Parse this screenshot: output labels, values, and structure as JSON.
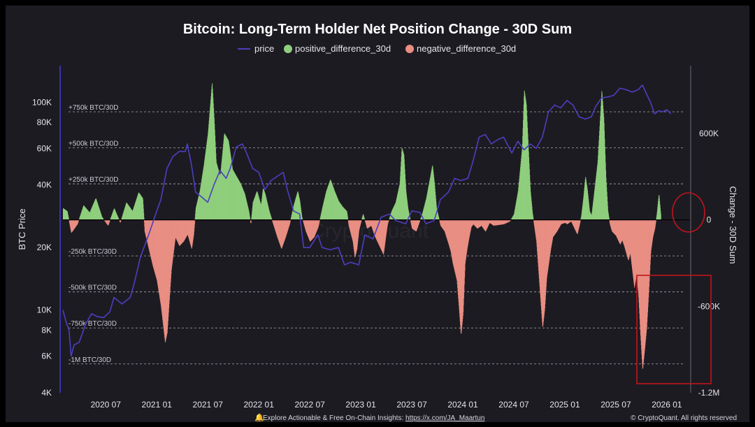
{
  "chart_data": {
    "type": "bar+line",
    "title": "Bitcoin: Long-Term Holder Net Position Change - 30D Sum",
    "legend": [
      {
        "name": "price",
        "color": "#4b3fbf",
        "marker": "line"
      },
      {
        "name": "positive_difference_30d",
        "color": "#8fce7c",
        "marker": "dot"
      },
      {
        "name": "negative_difference_30d",
        "color": "#e98e83",
        "marker": "dot"
      }
    ],
    "ylabel_left": "BTC Price",
    "ylabel_right": "Change - 30D Sum",
    "x_ticks": [
      "2020 07",
      "2021 01",
      "2021 07",
      "2022 01",
      "2022 07",
      "2023 01",
      "2023 07",
      "2024 01",
      "2024 07",
      "2025 01",
      "2025 07",
      "2026 01"
    ],
    "x_tick_times": [
      2020.5,
      2021.0,
      2021.5,
      2022.0,
      2022.5,
      2023.0,
      2023.5,
      2024.0,
      2024.5,
      2025.0,
      2025.5,
      2026.0
    ],
    "x_range": [
      2020.08,
      2026.22
    ],
    "left_axis": {
      "scale": "log",
      "range": [
        4000,
        150000
      ],
      "ticks": [
        {
          "v": 4000,
          "label": "4K"
        },
        {
          "v": 6000,
          "label": "6K"
        },
        {
          "v": 8000,
          "label": "8K"
        },
        {
          "v": 10000,
          "label": "10K"
        },
        {
          "v": 20000,
          "label": "20K"
        },
        {
          "v": 40000,
          "label": "40K"
        },
        {
          "v": 60000,
          "label": "60K"
        },
        {
          "v": 80000,
          "label": "80K"
        },
        {
          "v": 100000,
          "label": "100K"
        }
      ]
    },
    "right_axis": {
      "scale": "linear",
      "range": [
        -1200000,
        1070000
      ],
      "ticks": [
        {
          "v": 600000,
          "label": "600K"
        },
        {
          "v": 0,
          "label": "0"
        },
        {
          "v": -600000,
          "label": "-600K"
        },
        {
          "v": -1200000,
          "label": "-1.2M"
        }
      ]
    },
    "reference_lines": [
      {
        "v": 750000,
        "label": "+750k BTC/30D"
      },
      {
        "v": 500000,
        "label": "+500k BTC/30D"
      },
      {
        "v": 250000,
        "label": "+250k BTC/30D"
      },
      {
        "v": -250000,
        "label": "-250k BTC/30D"
      },
      {
        "v": -500000,
        "label": "-500k BTC/30D"
      },
      {
        "v": -750000,
        "label": "-750k BTC/30D"
      },
      {
        "v": -1000000,
        "label": "-1M BTC/30D"
      }
    ],
    "net_change_keypoints": [
      [
        2020.08,
        80000
      ],
      [
        2020.12,
        60000
      ],
      [
        2020.16,
        -90000
      ],
      [
        2020.22,
        -30000
      ],
      [
        2020.28,
        100000
      ],
      [
        2020.34,
        50000
      ],
      [
        2020.4,
        150000
      ],
      [
        2020.46,
        20000
      ],
      [
        2020.52,
        -40000
      ],
      [
        2020.58,
        80000
      ],
      [
        2020.64,
        -20000
      ],
      [
        2020.7,
        120000
      ],
      [
        2020.76,
        60000
      ],
      [
        2020.82,
        190000
      ],
      [
        2020.86,
        150000
      ],
      [
        2020.88,
        -80000
      ],
      [
        2020.92,
        -200000
      ],
      [
        2020.96,
        -320000
      ],
      [
        2021.0,
        -420000
      ],
      [
        2021.04,
        -600000
      ],
      [
        2021.08,
        -850000
      ],
      [
        2021.1,
        -780000
      ],
      [
        2021.14,
        -350000
      ],
      [
        2021.18,
        -120000
      ],
      [
        2021.22,
        -180000
      ],
      [
        2021.26,
        -150000
      ],
      [
        2021.3,
        -100000
      ],
      [
        2021.34,
        -200000
      ],
      [
        2021.36,
        -100000
      ],
      [
        2021.38,
        80000
      ],
      [
        2021.42,
        200000
      ],
      [
        2021.46,
        380000
      ],
      [
        2021.5,
        600000
      ],
      [
        2021.54,
        950000
      ],
      [
        2021.56,
        700000
      ],
      [
        2021.58,
        400000
      ],
      [
        2021.62,
        300000
      ],
      [
        2021.66,
        600000
      ],
      [
        2021.7,
        550000
      ],
      [
        2021.74,
        350000
      ],
      [
        2021.78,
        300000
      ],
      [
        2021.82,
        250000
      ],
      [
        2021.86,
        180000
      ],
      [
        2021.9,
        60000
      ],
      [
        2021.92,
        -30000
      ],
      [
        2021.94,
        120000
      ],
      [
        2021.98,
        200000
      ],
      [
        2022.02,
        100000
      ],
      [
        2022.04,
        220000
      ],
      [
        2022.06,
        180000
      ],
      [
        2022.1,
        60000
      ],
      [
        2022.14,
        -30000
      ],
      [
        2022.18,
        -120000
      ],
      [
        2022.22,
        -200000
      ],
      [
        2022.26,
        -120000
      ],
      [
        2022.3,
        -30000
      ],
      [
        2022.34,
        100000
      ],
      [
        2022.38,
        200000
      ],
      [
        2022.4,
        130000
      ],
      [
        2022.42,
        20000
      ],
      [
        2022.46,
        -80000
      ],
      [
        2022.5,
        -150000
      ],
      [
        2022.54,
        -120000
      ],
      [
        2022.58,
        -50000
      ],
      [
        2022.62,
        80000
      ],
      [
        2022.66,
        200000
      ],
      [
        2022.7,
        280000
      ],
      [
        2022.74,
        200000
      ],
      [
        2022.78,
        130000
      ],
      [
        2022.82,
        90000
      ],
      [
        2022.86,
        60000
      ],
      [
        2022.88,
        -40000
      ],
      [
        2022.92,
        -150000
      ],
      [
        2022.94,
        -260000
      ],
      [
        2022.96,
        -200000
      ],
      [
        2022.98,
        -70000
      ],
      [
        2023.02,
        40000
      ],
      [
        2023.06,
        -60000
      ],
      [
        2023.1,
        -40000
      ],
      [
        2023.14,
        -120000
      ],
      [
        2023.18,
        -180000
      ],
      [
        2023.22,
        -240000
      ],
      [
        2023.24,
        -130000
      ],
      [
        2023.26,
        -30000
      ],
      [
        2023.3,
        60000
      ],
      [
        2023.34,
        120000
      ],
      [
        2023.38,
        250000
      ],
      [
        2023.4,
        500000
      ],
      [
        2023.42,
        450000
      ],
      [
        2023.44,
        200000
      ],
      [
        2023.46,
        80000
      ],
      [
        2023.5,
        -60000
      ],
      [
        2023.54,
        -80000
      ],
      [
        2023.56,
        -40000
      ],
      [
        2023.6,
        40000
      ],
      [
        2023.64,
        150000
      ],
      [
        2023.68,
        300000
      ],
      [
        2023.7,
        380000
      ],
      [
        2023.72,
        250000
      ],
      [
        2023.74,
        80000
      ],
      [
        2023.78,
        -40000
      ],
      [
        2023.82,
        -80000
      ],
      [
        2023.86,
        -170000
      ],
      [
        2023.88,
        -220000
      ],
      [
        2023.9,
        -300000
      ],
      [
        2023.94,
        -420000
      ],
      [
        2023.96,
        -600000
      ],
      [
        2023.98,
        -800000
      ],
      [
        2024.0,
        -650000
      ],
      [
        2024.02,
        -300000
      ],
      [
        2024.04,
        -200000
      ],
      [
        2024.06,
        -120000
      ],
      [
        2024.08,
        -50000
      ],
      [
        2024.1,
        -30000
      ],
      [
        2024.14,
        -60000
      ],
      [
        2024.18,
        -40000
      ],
      [
        2024.22,
        -80000
      ],
      [
        2024.26,
        -20000
      ],
      [
        2024.3,
        -40000
      ],
      [
        2024.4,
        -30000
      ],
      [
        2024.46,
        -10000
      ],
      [
        2024.5,
        40000
      ],
      [
        2024.54,
        200000
      ],
      [
        2024.58,
        500000
      ],
      [
        2024.6,
        900000
      ],
      [
        2024.62,
        800000
      ],
      [
        2024.64,
        500000
      ],
      [
        2024.66,
        200000
      ],
      [
        2024.68,
        50000
      ],
      [
        2024.7,
        -50000
      ],
      [
        2024.72,
        -150000
      ],
      [
        2024.74,
        -350000
      ],
      [
        2024.76,
        -550000
      ],
      [
        2024.78,
        -750000
      ],
      [
        2024.8,
        -620000
      ],
      [
        2024.82,
        -400000
      ],
      [
        2024.84,
        -300000
      ],
      [
        2024.86,
        -200000
      ],
      [
        2024.88,
        -120000
      ],
      [
        2024.92,
        -80000
      ],
      [
        2024.96,
        -30000
      ],
      [
        2025.0,
        -20000
      ],
      [
        2025.02,
        -30000
      ],
      [
        2025.06,
        -10000
      ],
      [
        2025.1,
        -70000
      ],
      [
        2025.12,
        -100000
      ],
      [
        2025.14,
        -40000
      ],
      [
        2025.16,
        30000
      ],
      [
        2025.18,
        150000
      ],
      [
        2025.2,
        300000
      ],
      [
        2025.22,
        200000
      ],
      [
        2025.24,
        60000
      ],
      [
        2025.26,
        30000
      ],
      [
        2025.28,
        150000
      ],
      [
        2025.32,
        400000
      ],
      [
        2025.34,
        650000
      ],
      [
        2025.36,
        900000
      ],
      [
        2025.38,
        700000
      ],
      [
        2025.4,
        300000
      ],
      [
        2025.42,
        60000
      ],
      [
        2025.44,
        -30000
      ],
      [
        2025.46,
        -80000
      ],
      [
        2025.5,
        -110000
      ],
      [
        2025.54,
        -170000
      ],
      [
        2025.56,
        -140000
      ],
      [
        2025.58,
        -180000
      ],
      [
        2025.62,
        -280000
      ],
      [
        2025.64,
        -230000
      ],
      [
        2025.66,
        -350000
      ],
      [
        2025.68,
        -470000
      ],
      [
        2025.7,
        -380000
      ],
      [
        2025.72,
        -520000
      ],
      [
        2025.74,
        -800000
      ],
      [
        2025.76,
        -1040000
      ],
      [
        2025.78,
        -900000
      ],
      [
        2025.8,
        -750000
      ],
      [
        2025.82,
        -500000
      ],
      [
        2025.84,
        -220000
      ],
      [
        2025.86,
        -120000
      ],
      [
        2025.88,
        -60000
      ],
      [
        2025.9,
        40000
      ],
      [
        2025.92,
        180000
      ],
      [
        2025.93,
        100000
      ],
      [
        2025.94,
        20000
      ]
    ],
    "price_keypoints": [
      [
        2020.08,
        10000
      ],
      [
        2020.11,
        8800
      ],
      [
        2020.14,
        8000
      ],
      [
        2020.16,
        6000
      ],
      [
        2020.19,
        6800
      ],
      [
        2020.24,
        7000
      ],
      [
        2020.3,
        8500
      ],
      [
        2020.36,
        9600
      ],
      [
        2020.42,
        9300
      ],
      [
        2020.48,
        9200
      ],
      [
        2020.54,
        9800
      ],
      [
        2020.58,
        11500
      ],
      [
        2020.66,
        10700
      ],
      [
        2020.74,
        11500
      ],
      [
        2020.78,
        13500
      ],
      [
        2020.84,
        18000
      ],
      [
        2020.92,
        23000
      ],
      [
        2021.0,
        30000
      ],
      [
        2021.04,
        34000
      ],
      [
        2021.1,
        48000
      ],
      [
        2021.16,
        55000
      ],
      [
        2021.22,
        58000
      ],
      [
        2021.28,
        58000
      ],
      [
        2021.3,
        63000
      ],
      [
        2021.34,
        50000
      ],
      [
        2021.38,
        37000
      ],
      [
        2021.44,
        35000
      ],
      [
        2021.5,
        33000
      ],
      [
        2021.56,
        40000
      ],
      [
        2021.62,
        47000
      ],
      [
        2021.68,
        43000
      ],
      [
        2021.72,
        48000
      ],
      [
        2021.78,
        61000
      ],
      [
        2021.84,
        63000
      ],
      [
        2021.88,
        57000
      ],
      [
        2021.94,
        48000
      ],
      [
        2022.0,
        46000
      ],
      [
        2022.06,
        38000
      ],
      [
        2022.12,
        42000
      ],
      [
        2022.18,
        44000
      ],
      [
        2022.24,
        46000
      ],
      [
        2022.28,
        38000
      ],
      [
        2022.34,
        30000
      ],
      [
        2022.4,
        29000
      ],
      [
        2022.44,
        20000
      ],
      [
        2022.5,
        20000
      ],
      [
        2022.58,
        23000
      ],
      [
        2022.62,
        20000
      ],
      [
        2022.7,
        19500
      ],
      [
        2022.78,
        20000
      ],
      [
        2022.84,
        16500
      ],
      [
        2022.9,
        17000
      ],
      [
        2022.98,
        16500
      ],
      [
        2023.04,
        23000
      ],
      [
        2023.12,
        22000
      ],
      [
        2023.2,
        28000
      ],
      [
        2023.28,
        29000
      ],
      [
        2023.34,
        27000
      ],
      [
        2023.44,
        26000
      ],
      [
        2023.5,
        30000
      ],
      [
        2023.58,
        29500
      ],
      [
        2023.64,
        26000
      ],
      [
        2023.72,
        27000
      ],
      [
        2023.78,
        34000
      ],
      [
        2023.86,
        37000
      ],
      [
        2023.92,
        43000
      ],
      [
        2023.98,
        42000
      ],
      [
        2024.05,
        43000
      ],
      [
        2024.1,
        52000
      ],
      [
        2024.16,
        68000
      ],
      [
        2024.22,
        70000
      ],
      [
        2024.28,
        63000
      ],
      [
        2024.34,
        66000
      ],
      [
        2024.4,
        68000
      ],
      [
        2024.48,
        57000
      ],
      [
        2024.54,
        65000
      ],
      [
        2024.6,
        59000
      ],
      [
        2024.66,
        63000
      ],
      [
        2024.72,
        60000
      ],
      [
        2024.78,
        68000
      ],
      [
        2024.84,
        90000
      ],
      [
        2024.9,
        97000
      ],
      [
        2024.96,
        94000
      ],
      [
        2025.02,
        102000
      ],
      [
        2025.08,
        97000
      ],
      [
        2025.14,
        85000
      ],
      [
        2025.2,
        83000
      ],
      [
        2025.26,
        85000
      ],
      [
        2025.3,
        95000
      ],
      [
        2025.36,
        105000
      ],
      [
        2025.42,
        106000
      ],
      [
        2025.48,
        108000
      ],
      [
        2025.54,
        117000
      ],
      [
        2025.6,
        115000
      ],
      [
        2025.66,
        112000
      ],
      [
        2025.72,
        115000
      ],
      [
        2025.76,
        121000
      ],
      [
        2025.8,
        110000
      ],
      [
        2025.84,
        100000
      ],
      [
        2025.88,
        88000
      ],
      [
        2025.92,
        91000
      ],
      [
        2025.96,
        90000
      ],
      [
        2026.0,
        92000
      ],
      [
        2026.04,
        88000
      ]
    ],
    "annotations": [
      {
        "shape": "ellipse",
        "color": "#c0141c",
        "near": "latest positive bar at 0"
      },
      {
        "shape": "rectangle",
        "color": "#c0141c",
        "near": "2025 H2 negative spike to -1M"
      }
    ]
  },
  "footer": {
    "promo_icon": "bell-icon",
    "promo_text": "Explore Actionable & Free On-Chain Insights: ",
    "promo_link": "https://x.com/JA_Maartun",
    "credit": "© CryptoQuant. All rights reserved"
  },
  "watermark": "CryptoQuant",
  "colors": {
    "background": "#1d1b22",
    "positive": "#8fce7c",
    "negative": "#e98e83",
    "price": "#4b3fbf",
    "annotation": "#c0141c"
  }
}
